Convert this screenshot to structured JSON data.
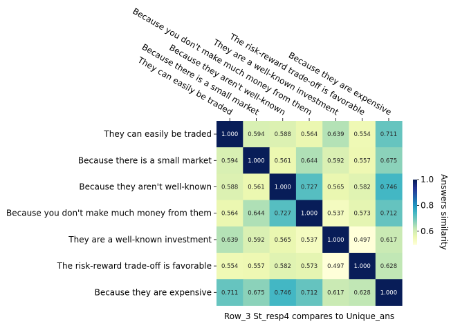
{
  "chart_data": {
    "type": "heatmap",
    "title": "",
    "xlabel": "Row_3 St_resp4 compares to Unique_ans",
    "ylabel": "",
    "rows": [
      "They can easily be traded",
      "Because there is a small market",
      "Because they aren't well-known",
      "Because you don't make much money from them",
      "They are a well-known investment",
      "The risk-reward trade-off is favorable",
      "Because they are expensive"
    ],
    "columns": [
      "They can easily be traded",
      "Because there is a small market",
      "Because they aren't well-known",
      "Because you don't make much money from them",
      "They are a well-known investment",
      "The risk-reward trade-off is favorable",
      "Because they are expensive"
    ],
    "values": [
      [
        1.0,
        0.594,
        0.588,
        0.564,
        0.639,
        0.554,
        0.711
      ],
      [
        0.594,
        1.0,
        0.561,
        0.644,
        0.592,
        0.557,
        0.675
      ],
      [
        0.588,
        0.561,
        1.0,
        0.727,
        0.565,
        0.582,
        0.746
      ],
      [
        0.564,
        0.644,
        0.727,
        1.0,
        0.537,
        0.573,
        0.712
      ],
      [
        0.639,
        0.592,
        0.565,
        0.537,
        1.0,
        0.497,
        0.617
      ],
      [
        0.554,
        0.557,
        0.582,
        0.573,
        0.497,
        1.0,
        0.628
      ],
      [
        0.711,
        0.675,
        0.746,
        0.712,
        0.617,
        0.628,
        1.0
      ]
    ],
    "colorbar": {
      "label": "Answers similarity",
      "range": [
        0.497,
        1.0
      ],
      "ticks": [
        "0.6",
        "0.8",
        "1.0"
      ],
      "colormap": "YlGnBu"
    },
    "grid": false,
    "legend": "none"
  }
}
